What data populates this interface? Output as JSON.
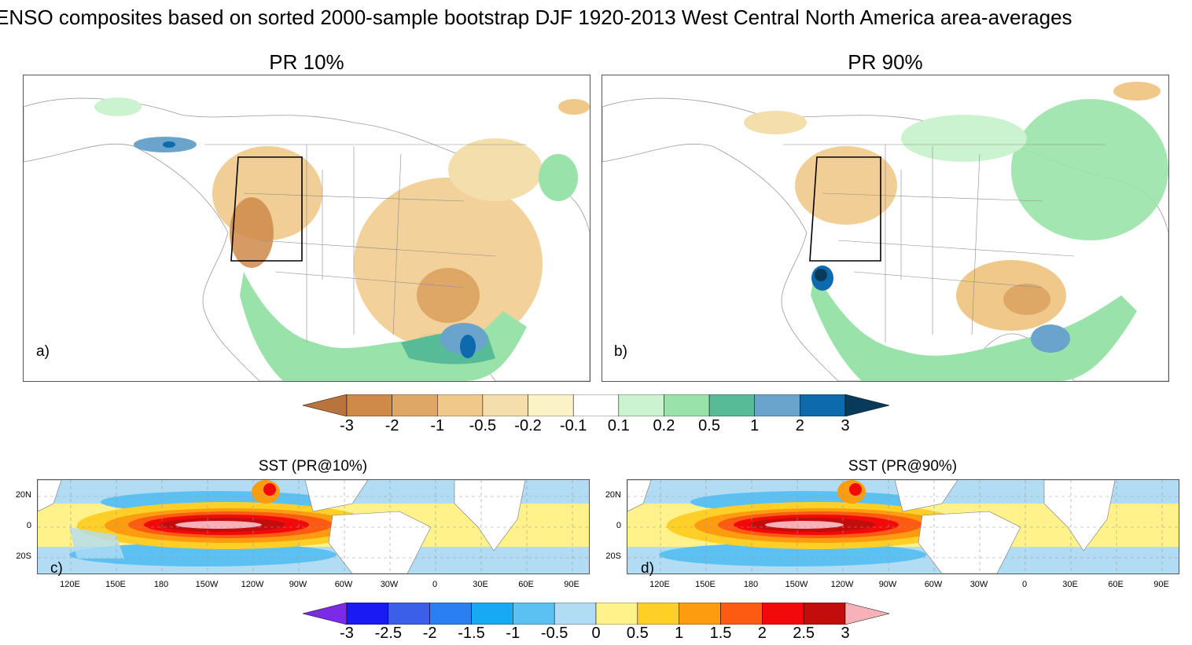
{
  "title": "ENSO composites based on sorted 2000-sample bootstrap DJF 1920-2013 West Central North America area-averages",
  "panels": {
    "a": {
      "title": "PR 10%",
      "tag": "a)"
    },
    "b": {
      "title": "PR 90%",
      "tag": "b)"
    },
    "c": {
      "title": "SST (PR@10%)",
      "tag": "c)"
    },
    "d": {
      "title": "SST (PR@90%)",
      "tag": "d)"
    }
  },
  "pr_colorbar": {
    "labels": [
      "-3",
      "-2",
      "-1",
      "-0.5",
      "-0.2",
      "-0.1",
      "0.1",
      "0.2",
      "0.5",
      "1",
      "2",
      "3"
    ],
    "colors": [
      "#b9733d",
      "#cf8a4a",
      "#dfa766",
      "#f0c98a",
      "#f4deac",
      "#fcf2c8",
      "#ffffff",
      "#cbf3cf",
      "#99e3aa",
      "#57bb98",
      "#6aa4cd",
      "#0c6aad",
      "#083a5a"
    ]
  },
  "sst_colorbar": {
    "labels": [
      "-3",
      "-2.5",
      "-2",
      "-1.5",
      "-1",
      "-0.5",
      "0",
      "0.5",
      "1",
      "1.5",
      "2",
      "2.5",
      "3"
    ],
    "colors": [
      "#7b2be5",
      "#1a1af5",
      "#3b5fe8",
      "#2b7ff0",
      "#17a9f3",
      "#5bc1f3",
      "#b1dcf4",
      "#fff28a",
      "#fdcf27",
      "#fe9c10",
      "#fd5a12",
      "#f20a0a",
      "#c30d0d",
      "#f9b1b9"
    ]
  },
  "sst_axes": {
    "x_ticks": [
      "120E",
      "150E",
      "180",
      "150W",
      "120W",
      "90W",
      "60W",
      "30W",
      "0",
      "30E",
      "60E",
      "90E"
    ],
    "y_ticks": [
      "20N",
      "0",
      "20S"
    ]
  }
}
